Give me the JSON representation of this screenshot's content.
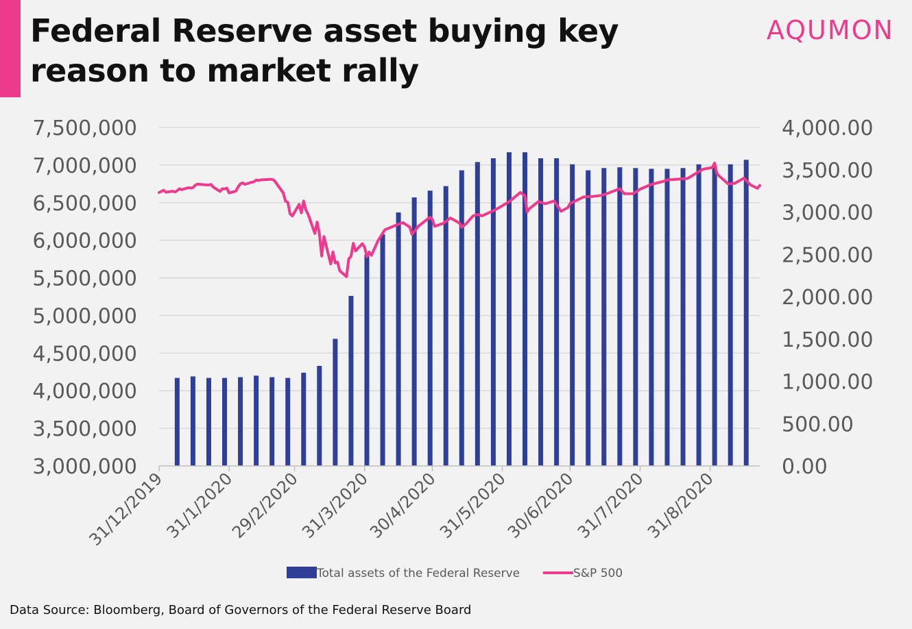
{
  "header": {
    "title": "Federal Reserve asset buying key reason to market rally",
    "brand": "AQUMON",
    "accent_color": "#ee3a8c"
  },
  "footer": {
    "source": "Data Source: Bloomberg, Board of Governors of the Federal Reserve Board"
  },
  "chart_data": {
    "type": "bar+line",
    "title": "Federal Reserve asset buying key reason to market rally",
    "y_left": {
      "ylim": [
        3000000,
        7500000
      ],
      "ticks": [
        3000000,
        3500000,
        4000000,
        4500000,
        5000000,
        5500000,
        6000000,
        6500000,
        7000000,
        7500000
      ],
      "tick_labels": [
        "3,000,000",
        "3,500,000",
        "4,000,000",
        "4,500,000",
        "5,000,000",
        "5,500,000",
        "6,000,000",
        "6,500,000",
        "7,000,000",
        "7,500,000"
      ]
    },
    "y_right": {
      "ylim": [
        0,
        4000
      ],
      "ticks": [
        0,
        500,
        1000,
        1500,
        2000,
        2500,
        3000,
        3500,
        4000
      ],
      "tick_labels": [
        "0.00",
        "500.00",
        "1,000.00",
        "1,500.00",
        "2,000.00",
        "2,500.00",
        "3,000.00",
        "3,500.00",
        "4,000.00"
      ]
    },
    "x_axis": {
      "range": [
        "2019-12-31",
        "2020-09-22"
      ],
      "ticks": [
        "2019-12-31",
        "2020-01-31",
        "2020-02-29",
        "2020-03-31",
        "2020-04-30",
        "2020-05-31",
        "2020-06-30",
        "2020-07-31",
        "2020-08-31"
      ],
      "tick_labels": [
        "31/12/2019",
        "31/1/2020",
        "29/2/2020",
        "31/3/2020",
        "30/4/2020",
        "31/5/2020",
        "30/6/2020",
        "31/7/2020",
        "31/8/2020"
      ]
    },
    "grid": true,
    "legend_position": "bottom",
    "series": [
      {
        "name": "Total assets of the Federal Reserve",
        "type": "bar",
        "axis": "left",
        "color": "#2f3f97",
        "x": [
          "2020-01-08",
          "2020-01-15",
          "2020-01-22",
          "2020-01-29",
          "2020-02-05",
          "2020-02-12",
          "2020-02-19",
          "2020-02-26",
          "2020-03-04",
          "2020-03-11",
          "2020-03-18",
          "2020-03-25",
          "2020-04-01",
          "2020-04-08",
          "2020-04-15",
          "2020-04-22",
          "2020-04-29",
          "2020-05-06",
          "2020-05-13",
          "2020-05-20",
          "2020-05-27",
          "2020-06-03",
          "2020-06-10",
          "2020-06-17",
          "2020-06-24",
          "2020-07-01",
          "2020-07-08",
          "2020-07-15",
          "2020-07-22",
          "2020-07-29",
          "2020-08-05",
          "2020-08-12",
          "2020-08-19",
          "2020-08-26",
          "2020-09-02",
          "2020-09-09",
          "2020-09-16"
        ],
        "values": [
          4170000,
          4190000,
          4170000,
          4170000,
          4180000,
          4200000,
          4180000,
          4170000,
          4240000,
          4330000,
          4690000,
          5260000,
          5810000,
          6080000,
          6370000,
          6570000,
          6660000,
          6720000,
          6930000,
          7040000,
          7090000,
          7170000,
          7170000,
          7090000,
          7090000,
          7010000,
          6930000,
          6960000,
          6970000,
          6960000,
          6950000,
          6950000,
          6960000,
          7010000,
          6990000,
          7010000,
          7070000
        ]
      },
      {
        "name": "S&P 500",
        "type": "line",
        "axis": "right",
        "color": "#ee3a8c",
        "x": [
          "2019-12-31",
          "2020-01-02",
          "2020-01-03",
          "2020-01-06",
          "2020-01-07",
          "2020-01-08",
          "2020-01-09",
          "2020-01-10",
          "2020-01-13",
          "2020-01-14",
          "2020-01-15",
          "2020-01-16",
          "2020-01-17",
          "2020-01-21",
          "2020-01-22",
          "2020-01-23",
          "2020-01-24",
          "2020-01-27",
          "2020-01-28",
          "2020-01-29",
          "2020-01-30",
          "2020-01-31",
          "2020-02-03",
          "2020-02-04",
          "2020-02-05",
          "2020-02-06",
          "2020-02-07",
          "2020-02-10",
          "2020-02-11",
          "2020-02-12",
          "2020-02-13",
          "2020-02-14",
          "2020-02-18",
          "2020-02-19",
          "2020-02-20",
          "2020-02-21",
          "2020-02-24",
          "2020-02-25",
          "2020-02-26",
          "2020-02-27",
          "2020-02-28",
          "2020-03-02",
          "2020-03-03",
          "2020-03-04",
          "2020-03-05",
          "2020-03-06",
          "2020-03-09",
          "2020-03-10",
          "2020-03-11",
          "2020-03-12",
          "2020-03-13",
          "2020-03-16",
          "2020-03-17",
          "2020-03-18",
          "2020-03-19",
          "2020-03-20",
          "2020-03-23",
          "2020-03-24",
          "2020-03-25",
          "2020-03-26",
          "2020-03-27",
          "2020-03-30",
          "2020-03-31",
          "2020-04-01",
          "2020-04-02",
          "2020-04-03",
          "2020-04-06",
          "2020-04-08",
          "2020-04-09",
          "2020-04-14",
          "2020-04-17",
          "2020-04-20",
          "2020-04-21",
          "2020-04-24",
          "2020-04-29",
          "2020-04-30",
          "2020-05-01",
          "2020-05-05",
          "2020-05-08",
          "2020-05-12",
          "2020-05-13",
          "2020-05-15",
          "2020-05-18",
          "2020-05-20",
          "2020-05-22",
          "2020-05-26",
          "2020-05-29",
          "2020-06-03",
          "2020-06-08",
          "2020-06-10",
          "2020-06-11",
          "2020-06-12",
          "2020-06-16",
          "2020-06-19",
          "2020-06-23",
          "2020-06-26",
          "2020-06-29",
          "2020-06-30",
          "2020-07-06",
          "2020-07-10",
          "2020-07-14",
          "2020-07-17",
          "2020-07-22",
          "2020-07-24",
          "2020-07-28",
          "2020-07-31",
          "2020-08-05",
          "2020-08-10",
          "2020-08-12",
          "2020-08-18",
          "2020-08-21",
          "2020-08-26",
          "2020-08-28",
          "2020-09-01",
          "2020-09-02",
          "2020-09-03",
          "2020-09-04",
          "2020-09-08",
          "2020-09-11",
          "2020-09-15",
          "2020-09-18",
          "2020-09-21",
          "2020-09-22"
        ],
        "values": [
          3231,
          3258,
          3235,
          3246,
          3237,
          3253,
          3275,
          3265,
          3288,
          3283,
          3289,
          3317,
          3330,
          3321,
          3321,
          3326,
          3295,
          3244,
          3276,
          3273,
          3283,
          3226,
          3248,
          3298,
          3334,
          3345,
          3328,
          3352,
          3357,
          3379,
          3373,
          3380,
          3386,
          3386,
          3373,
          3338,
          3226,
          3128,
          3116,
          2979,
          2954,
          3090,
          2991,
          3130,
          3024,
          2972,
          2747,
          2882,
          2741,
          2481,
          2711,
          2386,
          2529,
          2398,
          2409,
          2305,
          2237,
          2447,
          2476,
          2630,
          2541,
          2627,
          2585,
          2471,
          2527,
          2489,
          2664,
          2750,
          2790,
          2846,
          2875,
          2823,
          2737,
          2837,
          2939,
          2912,
          2831,
          2868,
          2930,
          2870,
          2820,
          2864,
          2954,
          2972,
          2955,
          3003,
          3044,
          3122,
          3232,
          3190,
          3002,
          3041,
          3125,
          3098,
          3131,
          3009,
          3053,
          3100,
          3179,
          3185,
          3197,
          3225,
          3276,
          3216,
          3218,
          3271,
          3327,
          3360,
          3380,
          3390,
          3397,
          3478,
          3508,
          3526,
          3580,
          3455,
          3427,
          3332,
          3341,
          3401,
          3319,
          3281,
          3315
        ]
      }
    ]
  }
}
